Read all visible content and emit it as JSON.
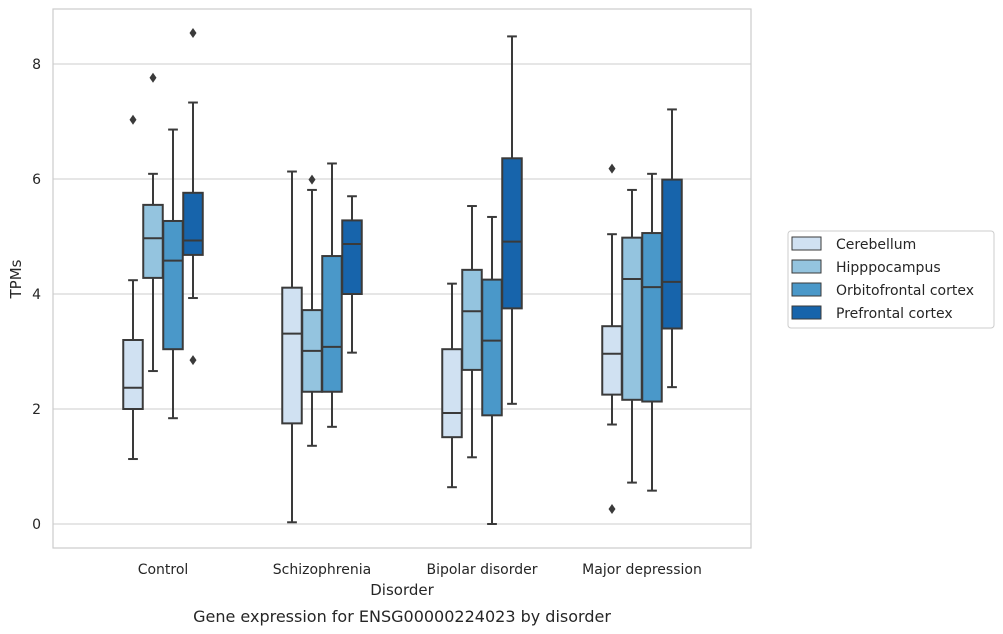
{
  "chart_data": {
    "type": "box",
    "caption": "Gene expression for ENSG00000224023 by disorder",
    "xlabel": "Disorder",
    "ylabel": "TPMs",
    "ylim": [
      -0.4,
      9.0
    ],
    "yticks": [
      0,
      2,
      4,
      6,
      8
    ],
    "grid": "horizontal",
    "legend_position": "right",
    "categories": [
      "Control",
      "Schizophrenia",
      "Bipolar disorder",
      "Major depression"
    ],
    "series": [
      {
        "name": "Cerebellum",
        "color": "#d0e1f2",
        "boxes": [
          {
            "whisker_low": 1.13,
            "q1": 2.0,
            "median": 2.37,
            "q3": 3.2,
            "whisker_high": 4.24,
            "outliers": [
              7.03
            ]
          },
          {
            "whisker_low": 0.03,
            "q1": 1.75,
            "median": 3.31,
            "q3": 4.11,
            "whisker_high": 6.13,
            "outliers": []
          },
          {
            "whisker_low": 0.64,
            "q1": 1.51,
            "median": 1.93,
            "q3": 3.04,
            "whisker_high": 4.18,
            "outliers": []
          },
          {
            "whisker_low": 1.73,
            "q1": 2.25,
            "median": 2.96,
            "q3": 3.44,
            "whisker_high": 5.04,
            "outliers": [
              6.18,
              0.26
            ]
          }
        ]
      },
      {
        "name": "Hipppocampus",
        "color": "#94c4df",
        "boxes": [
          {
            "whisker_low": 2.66,
            "q1": 4.28,
            "median": 4.97,
            "q3": 5.55,
            "whisker_high": 6.09,
            "outliers": [
              7.76
            ]
          },
          {
            "whisker_low": 1.36,
            "q1": 2.3,
            "median": 3.01,
            "q3": 3.72,
            "whisker_high": 5.81,
            "outliers": [
              5.99
            ]
          },
          {
            "whisker_low": 1.16,
            "q1": 2.68,
            "median": 3.7,
            "q3": 4.42,
            "whisker_high": 5.53,
            "outliers": []
          },
          {
            "whisker_low": 0.72,
            "q1": 2.16,
            "median": 4.26,
            "q3": 4.98,
            "whisker_high": 5.81,
            "outliers": []
          }
        ]
      },
      {
        "name": "Orbitofrontal cortex",
        "color": "#4a98c9",
        "boxes": [
          {
            "whisker_low": 1.84,
            "q1": 3.04,
            "median": 4.58,
            "q3": 5.27,
            "whisker_high": 6.86,
            "outliers": []
          },
          {
            "whisker_low": 1.69,
            "q1": 2.3,
            "median": 3.08,
            "q3": 4.66,
            "whisker_high": 6.27,
            "outliers": []
          },
          {
            "whisker_low": 0.0,
            "q1": 1.89,
            "median": 3.19,
            "q3": 4.25,
            "whisker_high": 5.34,
            "outliers": []
          },
          {
            "whisker_low": 0.58,
            "q1": 2.13,
            "median": 4.12,
            "q3": 5.06,
            "whisker_high": 6.09,
            "outliers": []
          }
        ]
      },
      {
        "name": "Prefrontal cortex",
        "color": "#1764ab",
        "boxes": [
          {
            "whisker_low": 3.93,
            "q1": 4.68,
            "median": 4.93,
            "q3": 5.76,
            "whisker_high": 7.33,
            "outliers": [
              8.54,
              2.85
            ]
          },
          {
            "whisker_low": 2.98,
            "q1": 4.0,
            "median": 4.87,
            "q3": 5.28,
            "whisker_high": 5.7,
            "outliers": []
          },
          {
            "whisker_low": 2.09,
            "q1": 3.75,
            "median": 4.91,
            "q3": 6.36,
            "whisker_high": 8.48,
            "outliers": []
          },
          {
            "whisker_low": 2.38,
            "q1": 3.4,
            "median": 4.21,
            "q3": 5.99,
            "whisker_high": 7.21,
            "outliers": []
          }
        ]
      }
    ]
  }
}
